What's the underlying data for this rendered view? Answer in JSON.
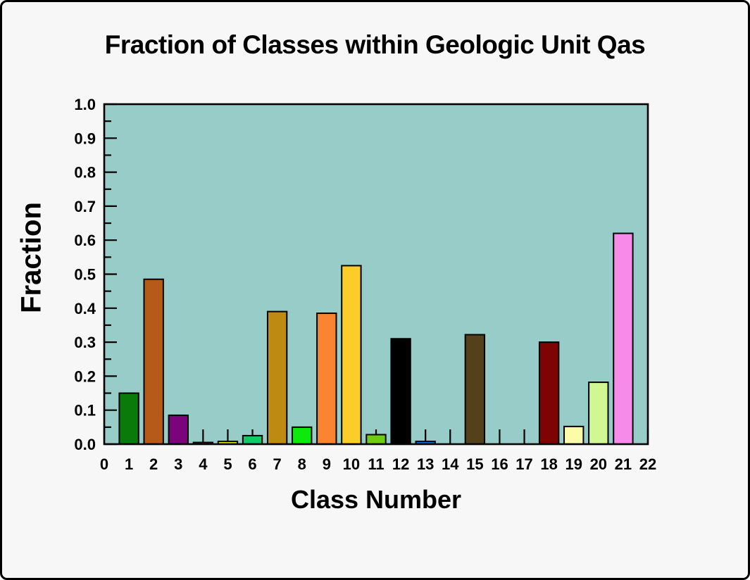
{
  "window": {
    "frame_bg": "#F7F7F7",
    "frame_border_color": "#000000"
  },
  "chart_data": {
    "type": "bar",
    "title": "Fraction of Classes within Geologic Unit Qas",
    "xlabel": "Class Number",
    "ylabel": "Fraction",
    "xlim": [
      0,
      22
    ],
    "ylim": [
      0.0,
      1.0
    ],
    "grid": false,
    "legend_position": "none",
    "plot_bg": "#97CCC8",
    "x_tick_labels": [
      "0",
      "1",
      "2",
      "3",
      "4",
      "5",
      "6",
      "7",
      "8",
      "9",
      "10",
      "11",
      "12",
      "13",
      "14",
      "15",
      "16",
      "17",
      "18",
      "19",
      "20",
      "21",
      "22"
    ],
    "y_tick_labels": [
      "0.0",
      "0.1",
      "0.2",
      "0.3",
      "0.4",
      "0.5",
      "0.6",
      "0.7",
      "0.8",
      "0.9",
      "1.0"
    ],
    "y_major_step": 0.1,
    "y_minor_step": 0.05,
    "bar_width_units": 0.78,
    "categories": [
      1,
      2,
      3,
      4,
      5,
      6,
      7,
      8,
      9,
      10,
      11,
      12,
      13,
      14,
      15,
      16,
      17,
      18,
      19,
      20,
      21
    ],
    "values": [
      0.15,
      0.485,
      0.085,
      0.005,
      0.008,
      0.025,
      0.39,
      0.05,
      0.385,
      0.525,
      0.028,
      0.31,
      0.008,
      0.0,
      0.322,
      0.0,
      0.0,
      0.3,
      0.052,
      0.182,
      0.62
    ],
    "bar_colors": [
      "#0A7A0A",
      "#B55A18",
      "#7A057A",
      "#12C968",
      "#F2EE0C",
      "#12C968",
      "#BE8A12",
      "#0DE80D",
      "#FA8432",
      "#FBCD2A",
      "#6FCC15",
      "#000000",
      "#0C6EF2",
      null,
      "#54401A",
      null,
      null,
      "#7E0404",
      "#FBFBA8",
      "#D0F792",
      "#F78BE9"
    ],
    "bar_outline_color": "#000000",
    "axis_color": "#000000"
  }
}
